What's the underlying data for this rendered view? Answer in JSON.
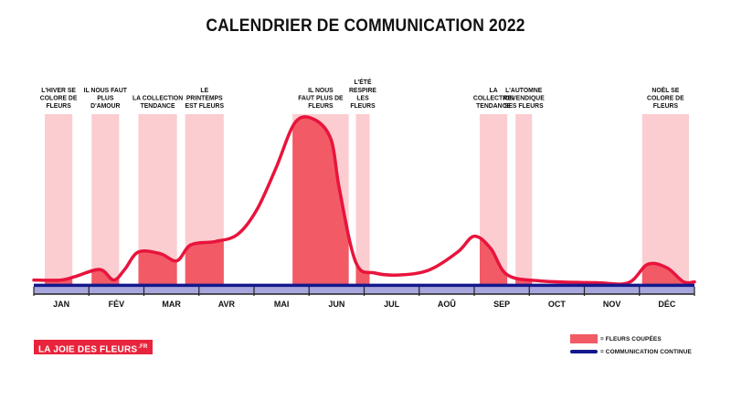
{
  "title": "CALENDRIER DE COMMUNICATION 2022",
  "brand": {
    "name": "LA JOIE DES FLEURS",
    "suffix": ".FR"
  },
  "legend": {
    "bar_label": "= FLEURS COUPÉES",
    "line_label": "= COMMUNICATION CONTINUE"
  },
  "colors": {
    "band_light": "#fbcdd0",
    "band_dark": "#f25a66",
    "curve": "#e8143c",
    "continuous": "#14188c",
    "continuous_fill": "#a7a6dd"
  },
  "chart_data": {
    "type": "area",
    "title": "CALENDRIER DE COMMUNICATION 2022",
    "x_axis": {
      "unit": "month",
      "domain": [
        0,
        12
      ],
      "tick_labels": [
        "JAN",
        "FÉV",
        "MAR",
        "AVR",
        "MAI",
        "JUN",
        "JUL",
        "AOÛ",
        "SEP",
        "OCT",
        "NOV",
        "DÉC"
      ]
    },
    "y_axis": {
      "domain": [
        0,
        100
      ],
      "ticks_shown": false
    },
    "continuous_level": 5,
    "series": [
      {
        "name": "FLEURS COUPÉES",
        "points": [
          [
            0.0,
            8
          ],
          [
            0.5,
            8
          ],
          [
            0.75,
            10
          ],
          [
            1.2,
            14
          ],
          [
            1.45,
            8
          ],
          [
            1.65,
            14
          ],
          [
            1.9,
            24
          ],
          [
            2.3,
            23
          ],
          [
            2.6,
            19
          ],
          [
            2.85,
            28
          ],
          [
            3.3,
            30
          ],
          [
            3.7,
            34
          ],
          [
            4.05,
            48
          ],
          [
            4.4,
            72
          ],
          [
            4.75,
            98
          ],
          [
            5.1,
            99.5
          ],
          [
            5.4,
            88
          ],
          [
            5.55,
            60
          ],
          [
            5.85,
            18
          ],
          [
            6.2,
            12
          ],
          [
            6.7,
            11
          ],
          [
            7.2,
            14
          ],
          [
            7.7,
            24
          ],
          [
            8.0,
            33
          ],
          [
            8.3,
            26
          ],
          [
            8.6,
            11
          ],
          [
            9.2,
            7.5
          ],
          [
            10.2,
            6.5
          ],
          [
            10.8,
            6.5
          ],
          [
            11.15,
            17
          ],
          [
            11.5,
            15
          ],
          [
            11.8,
            7
          ],
          [
            12.0,
            7
          ]
        ]
      }
    ],
    "campaigns": [
      {
        "label": "L'HIVER SE COLORE DE FLEURS",
        "start": 0.2,
        "end": 0.7
      },
      {
        "label": "IL NOUS FAUT PLUS D'AMOUR",
        "start": 1.05,
        "end": 1.55
      },
      {
        "label": "LA COLLECTION TENDANCE",
        "start": 1.9,
        "end": 2.6
      },
      {
        "label": "LE PRINTEMPS EST FLEURS",
        "start": 2.75,
        "end": 3.45
      },
      {
        "label": "IL NOUS FAUT PLUS DE FLEURS",
        "start": 4.7,
        "end": 5.72
      },
      {
        "label": "L'ÉTÉ RESPIRE LES FLEURS",
        "start": 5.85,
        "end": 6.1
      },
      {
        "label": "LA COLLECTION TENDANCE",
        "start": 8.1,
        "end": 8.6
      },
      {
        "label": "L'AUTOMNE REVENDIQUE SES FLEURS",
        "start": 8.75,
        "end": 9.05
      },
      {
        "label": "NOËL SE COLORE DE FLEURS",
        "start": 11.05,
        "end": 11.9
      }
    ],
    "campaign_labels_lines": [
      [
        "L'HIVER SE",
        "COLORE DE",
        "FLEURS"
      ],
      [
        "IL NOUS FAUT",
        "PLUS",
        "D'AMOUR"
      ],
      [
        "LA COLLECTION",
        "TENDANCE"
      ],
      [
        "LE",
        "PRINTEMPS",
        "EST FLEURS"
      ],
      [
        "IL NOUS",
        "FAUT PLUS DE",
        "FLEURS"
      ],
      [
        "L'ÉTÉ",
        "RESPIRE",
        "LES",
        "FLEURS"
      ],
      [
        "LA",
        "COLLECTION",
        "TENDANCE"
      ],
      [
        "L'AUTOMNE",
        "REVENDIQUE",
        "SES FLEURS"
      ],
      [
        "NOËL SE",
        "COLORE DE",
        "FLEURS"
      ]
    ]
  }
}
